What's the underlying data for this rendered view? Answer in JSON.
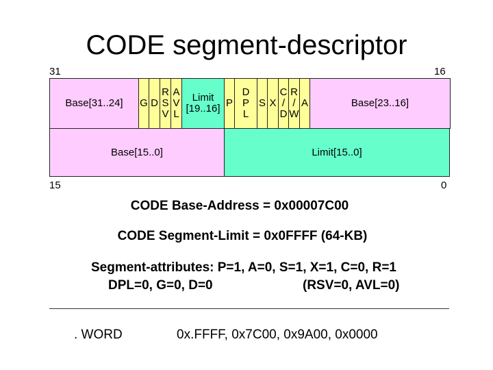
{
  "title": "CODE segment-descriptor",
  "bits": {
    "b31": "31",
    "b16": "16",
    "b15": "15",
    "b0": "0"
  },
  "row1": [
    "Base[31..24]",
    "G",
    "D",
    "RSV",
    "AVL",
    "Limit [19..16]",
    "P",
    "DPL",
    "S",
    "X",
    "C/D",
    "R/W",
    "A",
    "Base[23..16]"
  ],
  "row1_display": [
    "Base[31..24]",
    "G",
    "D",
    "R\nS\nV",
    "A\nV\nL",
    "Limit\n[19..16]",
    "P",
    "D\nP\nL",
    "S",
    "X",
    "C\n/\nD",
    "R\n/\nW",
    "A",
    "Base[23..16]"
  ],
  "row2": [
    "Base[15..0]",
    "Limit[15..0]"
  ],
  "colors": {
    "base": "#ffccff",
    "flags": "#ffff99",
    "limit": "#66ffcc"
  },
  "base_address": "CODE Base-Address = 0x00007C00",
  "segment_limit": "CODE Segment-Limit = 0x0FFFF (64-KB)",
  "attributes_line1": "Segment-attributes:  P=1, A=0, S=1, X=1, C=0, R=1",
  "attributes_line2a": "DPL=0, G=0, D=0",
  "attributes_line2b": "(RSV=0, AVL=0)",
  "directive": ". WORD",
  "words": "0x.FFFF, 0x7C00, 0x9A00, 0x0000"
}
